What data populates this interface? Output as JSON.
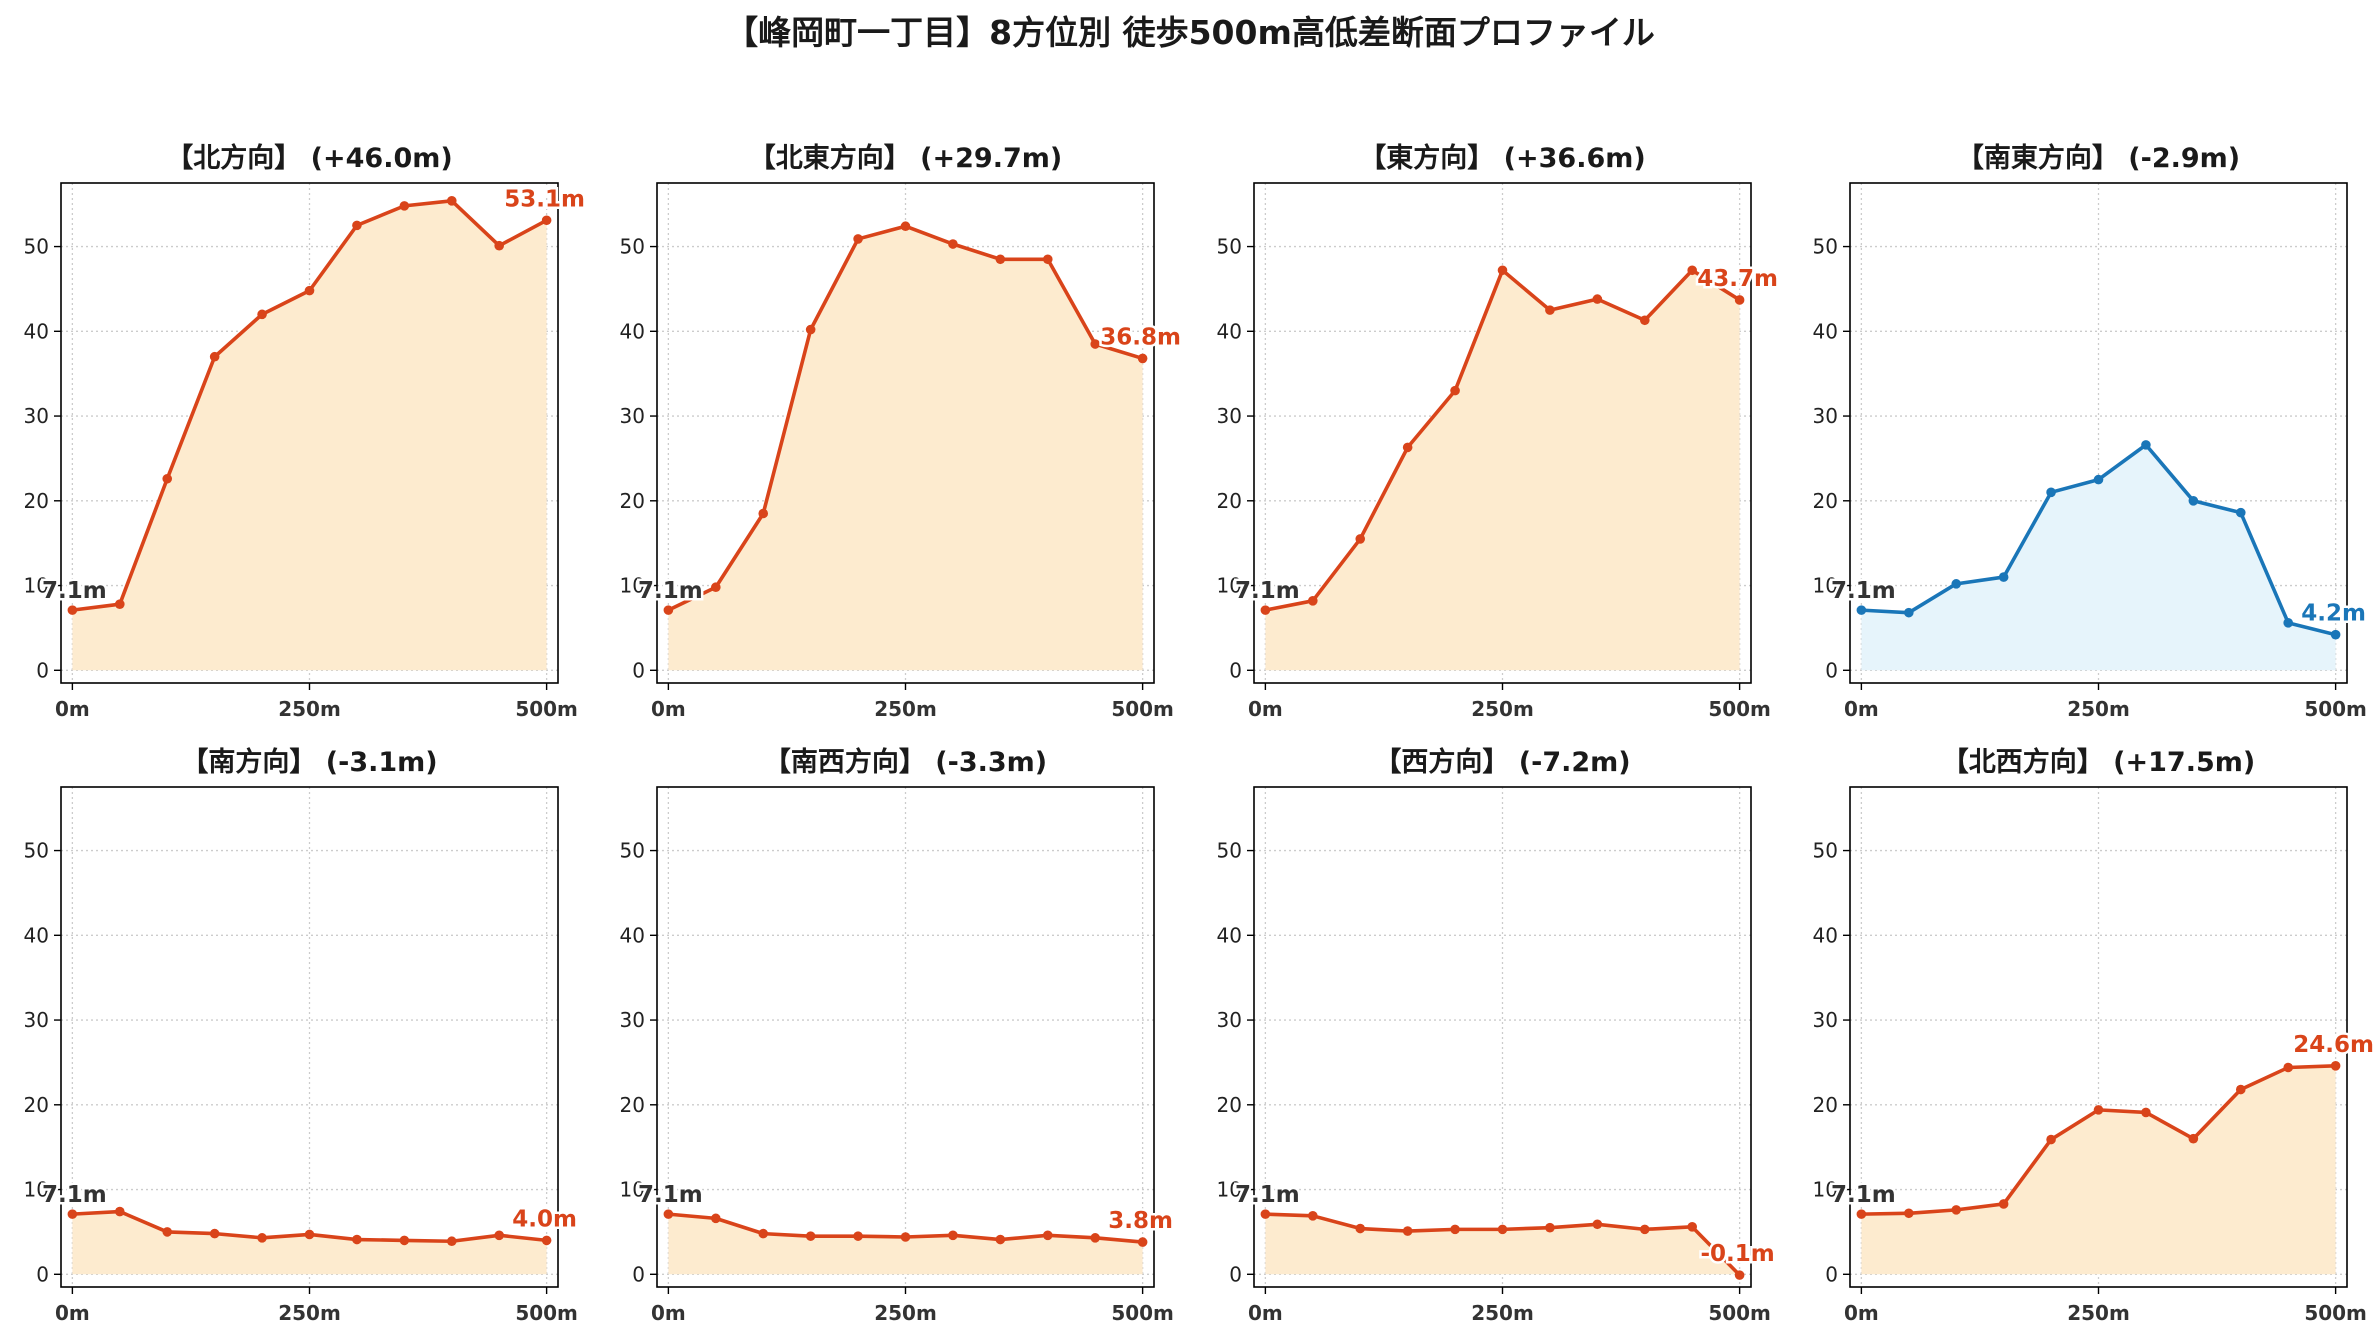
{
  "suptitle": "【峰岡町一丁目】8方位別 徒歩500m高低差断面プロファイル",
  "colors": {
    "up": "#d9441a",
    "up_fill": "#fdebcf",
    "down": "#1a76b8",
    "down_fill": "#e6f4fb",
    "grid": "#cccccc"
  },
  "chart_data": [
    {
      "type": "area",
      "title": "【北方向】 (+46.0m)",
      "trend": "up",
      "x": [
        0,
        50,
        100,
        150,
        200,
        250,
        300,
        350,
        400,
        450,
        500
      ],
      "xticks": [
        "0m",
        "250m",
        "500m"
      ],
      "yticks": [
        "0",
        "10",
        "20",
        "30",
        "40",
        "50"
      ],
      "xlim": [
        -12,
        512
      ],
      "ylim": [
        -1.5,
        57.5
      ],
      "values": [
        7.1,
        7.8,
        22.6,
        37.0,
        42.0,
        44.8,
        52.5,
        54.8,
        55.4,
        50.1,
        53.1
      ],
      "start_label": "7.1m",
      "end_label": "53.1m"
    },
    {
      "type": "area",
      "title": "【北東方向】 (+29.7m)",
      "trend": "up",
      "x": [
        0,
        50,
        100,
        150,
        200,
        250,
        300,
        350,
        400,
        450,
        500
      ],
      "xticks": [
        "0m",
        "250m",
        "500m"
      ],
      "yticks": [
        "0",
        "10",
        "20",
        "30",
        "40",
        "50"
      ],
      "xlim": [
        -12,
        512
      ],
      "ylim": [
        -1.5,
        57.5
      ],
      "values": [
        7.1,
        9.8,
        18.5,
        40.2,
        50.9,
        52.4,
        50.3,
        48.5,
        48.5,
        38.5,
        36.8
      ],
      "start_label": "7.1m",
      "end_label": "36.8m"
    },
    {
      "type": "area",
      "title": "【東方向】 (+36.6m)",
      "trend": "up",
      "x": [
        0,
        50,
        100,
        150,
        200,
        250,
        300,
        350,
        400,
        450,
        500
      ],
      "xticks": [
        "0m",
        "250m",
        "500m"
      ],
      "yticks": [
        "0",
        "10",
        "20",
        "30",
        "40",
        "50"
      ],
      "xlim": [
        -12,
        512
      ],
      "ylim": [
        -1.5,
        57.5
      ],
      "values": [
        7.1,
        8.2,
        15.5,
        26.3,
        33.0,
        47.2,
        42.5,
        43.8,
        41.3,
        47.2,
        43.7
      ],
      "start_label": "7.1m",
      "end_label": "43.7m"
    },
    {
      "type": "area",
      "title": "【南東方向】 (-2.9m)",
      "trend": "down",
      "x": [
        0,
        50,
        100,
        150,
        200,
        250,
        300,
        350,
        400,
        450,
        500
      ],
      "xticks": [
        "0m",
        "250m",
        "500m"
      ],
      "yticks": [
        "0",
        "10",
        "20",
        "30",
        "40",
        "50"
      ],
      "xlim": [
        -12,
        512
      ],
      "ylim": [
        -1.5,
        57.5
      ],
      "values": [
        7.1,
        6.8,
        10.2,
        11.0,
        21.0,
        22.5,
        26.6,
        20.0,
        18.6,
        5.6,
        4.2
      ],
      "start_label": "7.1m",
      "end_label": "4.2m"
    },
    {
      "type": "area",
      "title": "【南方向】 (-3.1m)",
      "trend": "up",
      "x": [
        0,
        50,
        100,
        150,
        200,
        250,
        300,
        350,
        400,
        450,
        500
      ],
      "xticks": [
        "0m",
        "250m",
        "500m"
      ],
      "yticks": [
        "0",
        "10",
        "20",
        "30",
        "40",
        "50"
      ],
      "xlim": [
        -12,
        512
      ],
      "ylim": [
        -1.5,
        57.5
      ],
      "values": [
        7.1,
        7.4,
        5.0,
        4.8,
        4.3,
        4.7,
        4.1,
        4.0,
        3.9,
        4.6,
        4.0
      ],
      "start_label": "7.1m",
      "end_label": "4.0m"
    },
    {
      "type": "area",
      "title": "【南西方向】 (-3.3m)",
      "trend": "up",
      "x": [
        0,
        50,
        100,
        150,
        200,
        250,
        300,
        350,
        400,
        450,
        500
      ],
      "xticks": [
        "0m",
        "250m",
        "500m"
      ],
      "yticks": [
        "0",
        "10",
        "20",
        "30",
        "40",
        "50"
      ],
      "xlim": [
        -12,
        512
      ],
      "ylim": [
        -1.5,
        57.5
      ],
      "values": [
        7.1,
        6.6,
        4.8,
        4.5,
        4.5,
        4.4,
        4.6,
        4.1,
        4.6,
        4.3,
        3.8
      ],
      "start_label": "7.1m",
      "end_label": "3.8m"
    },
    {
      "type": "area",
      "title": "【西方向】 (-7.2m)",
      "trend": "up",
      "x": [
        0,
        50,
        100,
        150,
        200,
        250,
        300,
        350,
        400,
        450,
        500
      ],
      "xticks": [
        "0m",
        "250m",
        "500m"
      ],
      "yticks": [
        "0",
        "10",
        "20",
        "30",
        "40",
        "50"
      ],
      "xlim": [
        -12,
        512
      ],
      "ylim": [
        -1.5,
        57.5
      ],
      "values": [
        7.1,
        6.9,
        5.4,
        5.1,
        5.3,
        5.3,
        5.5,
        5.9,
        5.3,
        5.6,
        -0.1
      ],
      "start_label": "7.1m",
      "end_label": "-0.1m"
    },
    {
      "type": "area",
      "title": "【北西方向】 (+17.5m)",
      "trend": "up",
      "x": [
        0,
        50,
        100,
        150,
        200,
        250,
        300,
        350,
        400,
        450,
        500
      ],
      "xticks": [
        "0m",
        "250m",
        "500m"
      ],
      "yticks": [
        "0",
        "10",
        "20",
        "30",
        "40",
        "50"
      ],
      "xlim": [
        -12,
        512
      ],
      "ylim": [
        -1.5,
        57.5
      ],
      "values": [
        7.1,
        7.2,
        7.6,
        8.3,
        15.9,
        19.4,
        19.1,
        16.0,
        21.8,
        24.4,
        24.6
      ],
      "start_label": "7.1m",
      "end_label": "24.6m"
    }
  ]
}
